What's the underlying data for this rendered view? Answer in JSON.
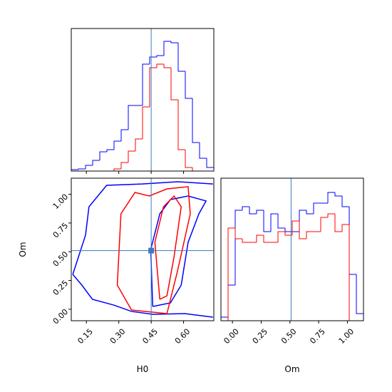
{
  "chart_data": [
    {
      "type": "histogram",
      "bins": [
        0.08,
        0.113,
        0.146,
        0.179,
        0.212,
        0.245,
        0.278,
        0.311,
        0.344,
        0.377,
        0.41,
        0.443,
        0.476,
        0.509,
        0.542,
        0.575,
        0.608,
        0.641,
        0.674,
        0.707,
        0.74
      ],
      "series": [
        {
          "color": "#0000ff",
          "values": [
            2,
            3,
            8,
            15,
            27,
            30,
            42,
            58,
            92,
            92,
            150,
            160,
            162,
            182,
            180,
            140,
            102,
            40,
            18,
            5
          ]
        },
        {
          "color": "#ff0000",
          "values": [
            0,
            0,
            0,
            0,
            0,
            0,
            3,
            12,
            28,
            45,
            90,
            145,
            150,
            145,
            100,
            30,
            5,
            0,
            0,
            0
          ]
        }
      ],
      "xlim": [
        0.08,
        0.74
      ],
      "ylim": [
        0,
        200
      ],
      "xticks": [
        0.15,
        0.3,
        0.45,
        0.6
      ],
      "truth": 0.45,
      "truth_color": "#3a7bbf"
    },
    {
      "type": "contour",
      "xlabel": "H0",
      "ylabel": "Om",
      "xlim": [
        0.08,
        0.74
      ],
      "ylim": [
        -0.1,
        1.14
      ],
      "xticks": [
        0.15,
        {
          "value": 0.3,
          "label": "0.30"
        },
        0.45,
        {
          "value": 0.6,
          "label": "0.60"
        }
      ],
      "yticks": [
        {
          "value": 0,
          "label": "0.00"
        },
        0.25,
        {
          "value": 0.5,
          "label": "0.50"
        },
        0.75,
        {
          "value": 1,
          "label": "1.00"
        }
      ],
      "series": [
        {
          "color": "#0000ff",
          "x": [
            0.087,
            0.146,
            0.162,
            0.244,
            0.408,
            0.572,
            0.736,
            null,
            0.736,
            0.605,
            0.457,
            0.359,
            0.277,
            0.178,
            0.129,
            0.087
          ],
          "y": [
            0.303,
            0.644,
            0.892,
            1.078,
            1.09,
            1.109,
            1.09,
            null,
            -0.069,
            -0.038,
            -0.044,
            -0.019,
            0.036,
            0.086,
            0.21,
            0.303
          ]
        },
        {
          "color": "#0000ff",
          "x": [
            0.457,
            0.448,
            0.49,
            0.539,
            0.621,
            0.704,
            0.671,
            0.621,
            0.589,
            0.539,
            0.457
          ],
          "y": [
            0.024,
            0.52,
            0.83,
            0.954,
            0.985,
            0.942,
            0.83,
            0.582,
            0.21,
            0.055,
            0.024
          ]
        },
        {
          "color": "#ff0000",
          "x": [
            0.359,
            0.293,
            0.31,
            0.375,
            0.441,
            0.523,
            0.621,
            0.631,
            0.572,
            0.523,
            0.359
          ],
          "y": [
            -0.007,
            0.21,
            0.83,
            1.016,
            0.985,
            1.047,
            1.066,
            0.83,
            0.334,
            -0.038,
            -0.007
          ]
        },
        {
          "color": "#ff0000",
          "x": [
            0.49,
            0.467,
            0.507,
            0.556,
            0.589,
            0.556,
            0.523,
            0.49
          ],
          "y": [
            0.086,
            0.582,
            0.892,
            0.985,
            0.892,
            0.458,
            0.117,
            0.086
          ]
        }
      ],
      "truth": {
        "x": 0.45,
        "y": 0.51
      },
      "truth_color": "#3a7bbf"
    },
    {
      "type": "histogram",
      "xlabel": "Om",
      "bins": [
        -0.1,
        -0.038,
        0.024,
        0.086,
        0.148,
        0.21,
        0.272,
        0.334,
        0.396,
        0.458,
        0.52,
        0.582,
        0.644,
        0.706,
        0.768,
        0.83,
        0.892,
        0.954,
        1.016,
        1.078,
        1.14
      ],
      "series": [
        {
          "color": "#0000ff",
          "values": [
            5,
            50,
            155,
            160,
            150,
            155,
            125,
            150,
            130,
            125,
            125,
            155,
            150,
            165,
            165,
            180,
            175,
            160,
            65,
            10
          ]
        },
        {
          "color": "#ff0000",
          "values": [
            0,
            130,
            115,
            110,
            110,
            120,
            110,
            110,
            125,
            120,
            140,
            115,
            125,
            125,
            145,
            150,
            125,
            135,
            0,
            0
          ]
        }
      ],
      "xlim": [
        -0.1,
        1.14
      ],
      "ylim": [
        0,
        200
      ],
      "xticks": [
        {
          "value": 0,
          "label": "0.00"
        },
        0.25,
        {
          "value": 0.5,
          "label": "0.50"
        },
        0.75,
        {
          "value": 1,
          "label": "1.00"
        }
      ],
      "truth": 0.51,
      "truth_color": "#3a7bbf"
    }
  ]
}
